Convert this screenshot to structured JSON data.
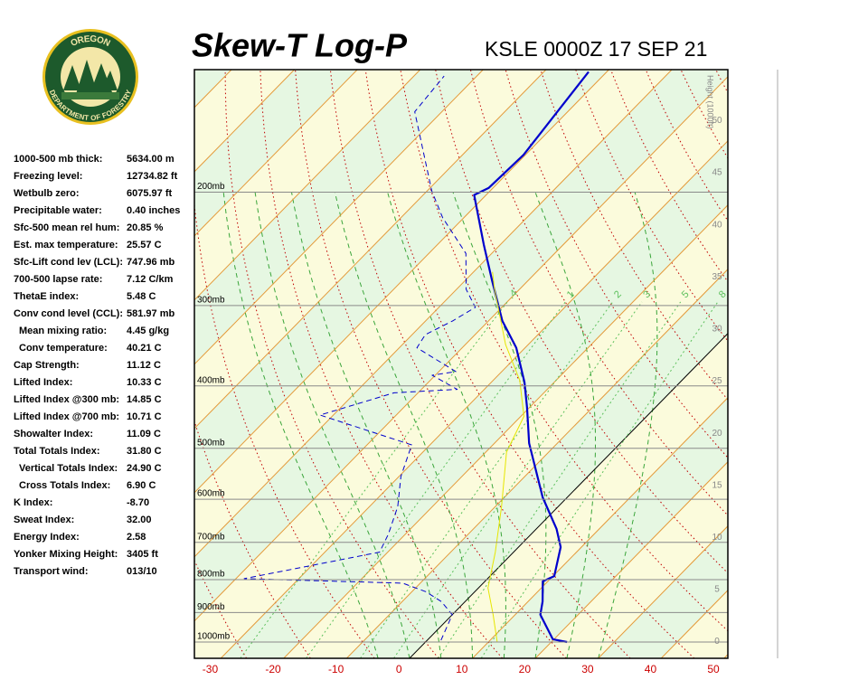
{
  "logo": {
    "top": "OREGON",
    "bottom": "DEPARTMENT OF FORESTRY"
  },
  "indices": [
    {
      "label": "1000-500 mb thick:",
      "value": "5634.00 m"
    },
    {
      "label": "Freezing level:",
      "value": "12734.82 ft"
    },
    {
      "label": "Wetbulb zero:",
      "value": "6075.97 ft"
    },
    {
      "label": "Precipitable water:",
      "value": "0.40 inches"
    },
    {
      "label": "Sfc-500 mean rel hum:",
      "value": "20.85 %"
    },
    {
      "label": "Est. max temperature:",
      "value": "25.57 C"
    },
    {
      "label": "Sfc-Lift cond lev (LCL):",
      "value": "747.96 mb"
    },
    {
      "label": "700-500 lapse rate:",
      "value": "7.12 C/km"
    },
    {
      "label": "ThetaE index:",
      "value": "5.48 C"
    },
    {
      "label": "Conv cond level (CCL):",
      "value": "581.97 mb"
    },
    {
      "label": "Mean mixing ratio:",
      "value": "4.45 g/kg"
    },
    {
      "label": "Conv temperature:",
      "value": "40.21 C"
    },
    {
      "label": "Cap Strength:",
      "value": "11.12 C"
    },
    {
      "label": "Lifted Index:",
      "value": "10.33 C"
    },
    {
      "label": "Lifted Index @300 mb:",
      "value": "14.85 C"
    },
    {
      "label": "Lifted Index @700 mb:",
      "value": "10.71 C"
    },
    {
      "label": "Showalter Index:",
      "value": "11.09 C"
    },
    {
      "label": "Total Totals Index:",
      "value": "31.80 C"
    },
    {
      "label": "Vertical Totals Index:",
      "value": "24.90 C"
    },
    {
      "label": "Cross Totals Index:",
      "value": "6.90 C"
    },
    {
      "label": "K Index:",
      "value": "-8.70"
    },
    {
      "label": "Sweat Index:",
      "value": "32.00"
    },
    {
      "label": "Energy Index:",
      "value": "2.58"
    },
    {
      "label": "Yonker Mixing Height:",
      "value": "3405 ft"
    },
    {
      "label": "Transport wind:",
      "value": "013/10"
    }
  ],
  "chart_data": {
    "type": "skewt",
    "title": "Skew-T Log-P",
    "subtitle": "KSLE 0000Z 17 SEP 21",
    "xlim": [
      -34.2,
      50.6
    ],
    "xticks": [
      -30,
      -20,
      -10,
      0,
      10,
      20,
      30,
      40,
      50
    ],
    "ylim": [
      1060,
      129
    ],
    "log_y": true,
    "yticks": [
      {
        "value": 1000,
        "label": "1000mb"
      },
      {
        "value": 900,
        "label": "900mb"
      },
      {
        "value": 800,
        "label": "800mb"
      },
      {
        "value": 700,
        "label": "700mb"
      },
      {
        "value": 600,
        "label": "600mb"
      },
      {
        "value": 500,
        "label": "500mb"
      },
      {
        "value": 400,
        "label": "400mb"
      },
      {
        "value": 300,
        "label": "300mb"
      },
      {
        "value": 200,
        "label": "200mb"
      }
    ],
    "y2_label": "Height (1000ft)",
    "y2lim": [
      -1.6,
      54.9
    ],
    "y2ticks": [
      0,
      5,
      10,
      15,
      20,
      25,
      30,
      35,
      40,
      45,
      50
    ],
    "mixing_ratios": [
      {
        "value": 0.4,
        "label": ".4"
      },
      1,
      2,
      3,
      5,
      8
    ],
    "series": [
      {
        "color": "#0000cc",
        "line_style": "solid",
        "width": 2.2,
        "pressure": [
          1000,
          990,
          907,
          865,
          805,
          790,
          712,
          667,
          596,
          491,
          432,
          395,
          349,
          317,
          275,
          241,
          202,
          197,
          175,
          130
        ],
        "values": [
          22.5,
          19.8,
          14.0,
          12.3,
          9.2,
          10.2,
          6.7,
          3.2,
          -3.9,
          -14.5,
          -20.4,
          -24.7,
          -31.4,
          -37.8,
          -45.6,
          -52.7,
          -61.9,
          -60.7,
          -60.3,
          -62.9
        ]
      },
      {
        "color": "#0000cc",
        "line_style": "dashed",
        "width": 1,
        "pressure": [
          994,
          907,
          865,
          835,
          810,
          797,
          725,
          680,
          616,
          553,
          494,
          444,
          410,
          405,
          385,
          380,
          349,
          333,
          317,
          302,
          283,
          249,
          219,
          199,
          150,
          132
        ],
        "values": [
          2.2,
          0.0,
          -3.8,
          -7.8,
          -12.8,
          -38.7,
          -21.3,
          -22.7,
          -25.5,
          -29.7,
          -32.9,
          -52.1,
          -43.8,
          -34.3,
          -40.5,
          -37.3,
          -47.2,
          -47.9,
          -45.7,
          -44.2,
          -48.5,
          -54.1,
          -63.4,
          -69.3,
          -84.3,
          -85.2
        ]
      },
      {
        "color": "#e6e600",
        "line_style": "solid",
        "width": 1,
        "pressure": [
          1000,
          907,
          824,
          725,
          616,
          507,
          446,
          392,
          345,
          284,
          266
        ],
        "values": [
          11.4,
          6.5,
          1.5,
          -2.9,
          -9.0,
          -16.7,
          -19.5,
          -25.8,
          -33.6,
          -43.8,
          -47.0
        ]
      }
    ]
  }
}
